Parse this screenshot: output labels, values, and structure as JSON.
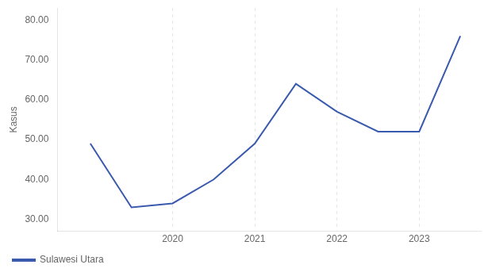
{
  "chart_data": {
    "type": "line",
    "x": [
      2019.0,
      2019.5,
      2020.0,
      2020.5,
      2021.0,
      2021.5,
      2022.0,
      2022.5,
      2023.0,
      2023.5
    ],
    "series": [
      {
        "name": "Sulawesi Utara",
        "color": "#3a5aad",
        "values": [
          49,
          33,
          34,
          40,
          49,
          64,
          57,
          52,
          52,
          76
        ]
      }
    ],
    "ylabel": "Kasus",
    "xlim": [
      2018.6,
      2023.75
    ],
    "xticks": [
      2020,
      2021,
      2022,
      2023
    ],
    "ylim": [
      27,
      83
    ],
    "yticks": [
      {
        "value": 30,
        "label": "30.00"
      },
      {
        "value": 40,
        "label": "40.00"
      },
      {
        "value": 50,
        "label": "50.00"
      },
      {
        "value": 60,
        "label": "60.00"
      },
      {
        "value": 70,
        "label": "70.00"
      },
      {
        "value": 80,
        "label": "80.00"
      }
    ],
    "grid": "x",
    "legend": "bottom"
  }
}
